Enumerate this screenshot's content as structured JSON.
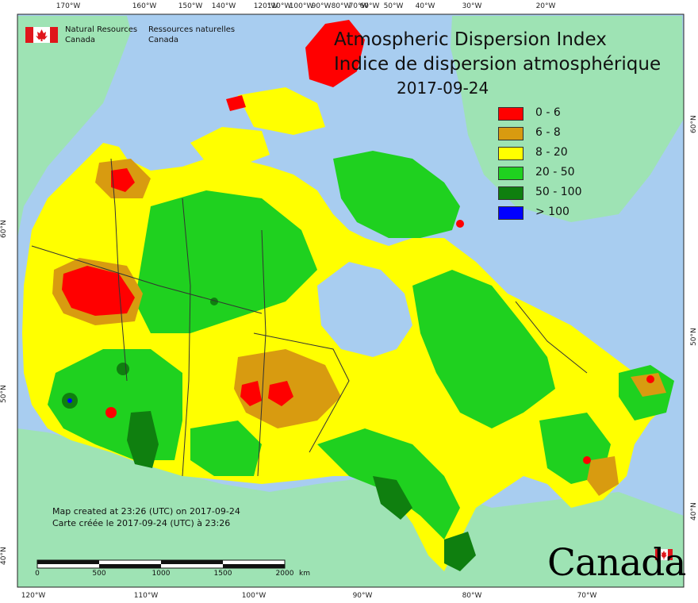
{
  "agency": {
    "en_line1": "Natural Resources",
    "en_line2": "Canada",
    "fr_line1": "Ressources naturelles",
    "fr_line2": "Canada"
  },
  "map": {
    "title_en": "Atmospheric Dispersion Index",
    "title_fr": "Indice de dispersion atmosphérique",
    "date": "2017-09-24",
    "credit_en": "Map created at 23:26 (UTC) on 2017-09-24",
    "credit_fr": "Carte créée le 2017-09-24 (UTC) à 23:26",
    "wordmark": "Canada"
  },
  "legend": [
    {
      "label": "0 - 6",
      "color": "#ff0000"
    },
    {
      "label": "6 - 8",
      "color": "#d89b10"
    },
    {
      "label": "8 - 20",
      "color": "#ffff00"
    },
    {
      "label": "20 - 50",
      "color": "#1fd11f"
    },
    {
      "label": "50 - 100",
      "color": "#0f7f0f"
    },
    {
      "label": "> 100",
      "color": "#0000ff"
    }
  ],
  "colors": {
    "ocean": "#a8cdf0",
    "other_land": "#9ee3b4",
    "border": "#333333"
  },
  "lon_ticks_top": [
    "170°W",
    "160°W",
    "150°W",
    "140°W",
    "120°W",
    "110°W",
    "100°W",
    "90°W",
    "80°W",
    "70°W",
    "60°W",
    "50°W",
    "40°W",
    "30°W",
    "20°W"
  ],
  "lon_ticks_bottom": [
    "120°W",
    "110°W",
    "100°W",
    "90°W",
    "80°W",
    "70°W"
  ],
  "lat_ticks_left": [
    "60°N",
    "50°N",
    "40°N"
  ],
  "lat_ticks_right": [
    "60°N",
    "50°N",
    "40°N"
  ],
  "scale_bar": {
    "labels": [
      "0",
      "500",
      "1000",
      "1500",
      "2000"
    ],
    "unit": "km"
  }
}
